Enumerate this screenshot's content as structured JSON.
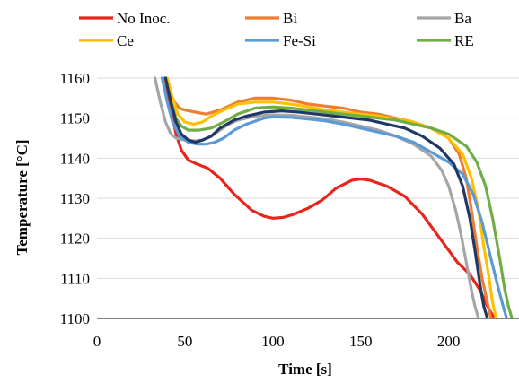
{
  "chart_data": {
    "type": "line",
    "xlabel": "Time  [s]",
    "ylabel": "Temperature  [°C]",
    "xlim": [
      0,
      240
    ],
    "ylim": [
      1100,
      1160
    ],
    "xticks": [
      "0",
      "50",
      "100",
      "150",
      "200"
    ],
    "yticks": [
      "1100",
      "1110",
      "1120",
      "1130",
      "1140",
      "1150",
      "1160"
    ],
    "grid": "horizontal",
    "legend_position": "top",
    "series": [
      {
        "name": "No Inoc.",
        "color": "#e8251d",
        "x": [
          38,
          42,
          45,
          48,
          52,
          57,
          63,
          70,
          78,
          88,
          95,
          100,
          106,
          112,
          120,
          128,
          136,
          145,
          150,
          155,
          165,
          175,
          185,
          195,
          205,
          212,
          218,
          222,
          226
        ],
        "y": [
          1160,
          1152,
          1146,
          1142,
          1139.5,
          1138.5,
          1137.5,
          1135,
          1131,
          1127,
          1125.5,
          1125,
          1125.2,
          1126,
          1127.5,
          1129.5,
          1132.5,
          1134.5,
          1134.8,
          1134.5,
          1133,
          1130.5,
          1126,
          1120,
          1114,
          1111,
          1107,
          1103,
          1100
        ]
      },
      {
        "name": "Bi",
        "color": "#ed7d31",
        "x": [
          38,
          41,
          44,
          47,
          50,
          56,
          62,
          70,
          80,
          90,
          100,
          110,
          120,
          130,
          140,
          150,
          160,
          170,
          180,
          190,
          200,
          206,
          210,
          213,
          216,
          219,
          222,
          224
        ],
        "y": [
          1160,
          1157,
          1154,
          1152.5,
          1152,
          1151.5,
          1151,
          1152,
          1154,
          1155,
          1155,
          1154.5,
          1153.5,
          1153,
          1152.5,
          1151.5,
          1151,
          1150,
          1149,
          1147.5,
          1145,
          1141,
          1135,
          1127,
          1118,
          1110,
          1104,
          1100
        ]
      },
      {
        "name": "Ba",
        "color": "#a5a5a5",
        "x": [
          33,
          36,
          39,
          42,
          45,
          50,
          55,
          60,
          65,
          70,
          75,
          80,
          90,
          100,
          110,
          120,
          130,
          140,
          150,
          160,
          170,
          180,
          190,
          196,
          200,
          204,
          207,
          210,
          213,
          215,
          217
        ],
        "y": [
          1160,
          1154,
          1149,
          1146,
          1145,
          1144.5,
          1144.3,
          1144.5,
          1145.5,
          1147,
          1148.5,
          1149.5,
          1150.5,
          1150.8,
          1150.7,
          1150.3,
          1149.8,
          1149,
          1148,
          1147,
          1145.5,
          1143.5,
          1140.5,
          1137,
          1133,
          1127,
          1121,
          1114,
          1107,
          1103,
          1100
        ]
      },
      {
        "name": "Ce",
        "color": "#ffc000",
        "x": [
          40,
          43,
          46,
          50,
          55,
          60,
          65,
          72,
          80,
          90,
          100,
          110,
          120,
          130,
          140,
          150,
          160,
          170,
          180,
          190,
          200,
          208,
          213,
          217,
          220,
          223,
          225,
          227
        ],
        "y": [
          1160,
          1155,
          1151,
          1149,
          1148.5,
          1149,
          1150.5,
          1152,
          1153.5,
          1154,
          1154,
          1153.5,
          1152.8,
          1152,
          1151.5,
          1151,
          1150.5,
          1149.8,
          1149,
          1147.5,
          1145,
          1141,
          1135,
          1127,
          1118,
          1110,
          1104,
          1100
        ]
      },
      {
        "name": "Fe-Si",
        "color": "#5b9bd5",
        "x": [
          37,
          40,
          43,
          47,
          52,
          57,
          62,
          67,
          72,
          78,
          85,
          95,
          100,
          110,
          120,
          130,
          140,
          150,
          160,
          170,
          180,
          190,
          200,
          208,
          214,
          219,
          224,
          228,
          231,
          233
        ],
        "y": [
          1160,
          1154,
          1149,
          1145.5,
          1144,
          1143.5,
          1143.5,
          1144,
          1145,
          1147,
          1148.5,
          1150,
          1150.3,
          1150.2,
          1149.8,
          1149.3,
          1148.5,
          1147.5,
          1146.5,
          1145.5,
          1144,
          1141.5,
          1139,
          1136,
          1131,
          1124,
          1115,
          1108,
          1103,
          1100
        ]
      },
      {
        "name": "RE",
        "color": "#70ad47",
        "x": [
          39,
          42,
          45,
          48,
          52,
          58,
          65,
          72,
          80,
          90,
          100,
          110,
          120,
          130,
          140,
          150,
          160,
          170,
          180,
          190,
          200,
          210,
          216,
          221,
          225,
          229,
          232,
          234,
          236
        ],
        "y": [
          1160,
          1154,
          1150,
          1148,
          1147,
          1147,
          1147.5,
          1149,
          1151,
          1152.5,
          1152.8,
          1152.5,
          1152,
          1151.5,
          1151,
          1150.5,
          1150,
          1149.5,
          1148.5,
          1147.5,
          1146,
          1143,
          1139,
          1133,
          1125,
          1115,
          1107,
          1103,
          1100
        ]
      },
      {
        "name": "",
        "color": "#203864",
        "x": [
          39,
          42,
          45,
          48,
          52,
          56,
          60,
          65,
          70,
          78,
          85,
          95,
          105,
          115,
          125,
          135,
          145,
          155,
          165,
          175,
          185,
          195,
          203,
          208,
          212,
          215,
          218,
          220,
          222
        ],
        "y": [
          1160,
          1154,
          1149,
          1146,
          1144.5,
          1144,
          1144.5,
          1145.5,
          1147.5,
          1149.5,
          1150.5,
          1151.5,
          1151.8,
          1151.5,
          1151,
          1150.5,
          1150,
          1149.5,
          1148.5,
          1147.5,
          1145.5,
          1142.5,
          1138.5,
          1133,
          1125,
          1117,
          1108,
          1103,
          1100
        ]
      }
    ]
  }
}
